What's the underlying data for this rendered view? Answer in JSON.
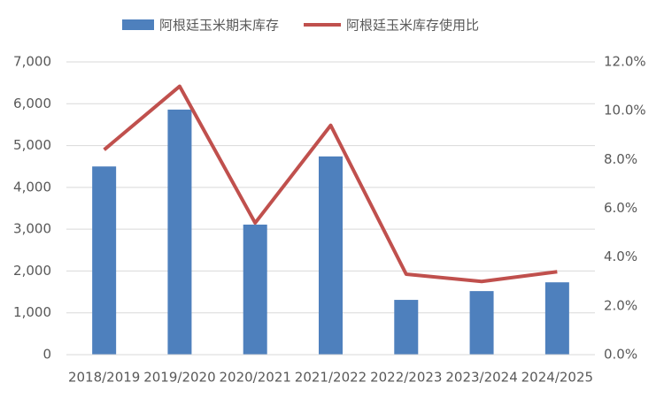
{
  "chart_data": {
    "type": "bar_line",
    "categories": [
      "2018/2019",
      "2019/2020",
      "2020/2021",
      "2021/2022",
      "2022/2023",
      "2023/2024",
      "2024/2025"
    ],
    "series": [
      {
        "name": "阿根廷玉米期末库存",
        "type": "bar",
        "color": "#4e80bd",
        "values": [
          4500,
          5860,
          3110,
          4740,
          1310,
          1520,
          1730
        ]
      },
      {
        "name": "阿根廷玉米库存使用比",
        "type": "line",
        "axis": "y2",
        "color": "#c0504d",
        "values": [
          8.4,
          11.0,
          5.4,
          9.4,
          3.3,
          3.0,
          3.4
        ]
      }
    ],
    "ylim": [
      0,
      7000
    ],
    "yticks": [
      0,
      {
        "value": 1000,
        "label": "1,000"
      },
      {
        "value": 2000,
        "label": "2,000"
      },
      {
        "value": 3000,
        "label": "3,000"
      },
      {
        "value": 4000,
        "label": "4,000"
      },
      {
        "value": 5000,
        "label": "5,000"
      },
      {
        "value": 6000,
        "label": "6,000"
      },
      {
        "value": 7000,
        "label": "7,000"
      }
    ],
    "y2lim": [
      0,
      12
    ],
    "y2ticks": [
      {
        "value": 0,
        "label": "0.0%"
      },
      {
        "value": 2,
        "label": "2.0%"
      },
      {
        "value": 4,
        "label": "4.0%"
      },
      {
        "value": 6,
        "label": "6.0%"
      },
      {
        "value": 8,
        "label": "8.0%"
      },
      {
        "value": 10,
        "label": "10.0%"
      },
      {
        "value": 12,
        "label": "12.0%"
      }
    ],
    "grid": true,
    "legend": "top"
  }
}
